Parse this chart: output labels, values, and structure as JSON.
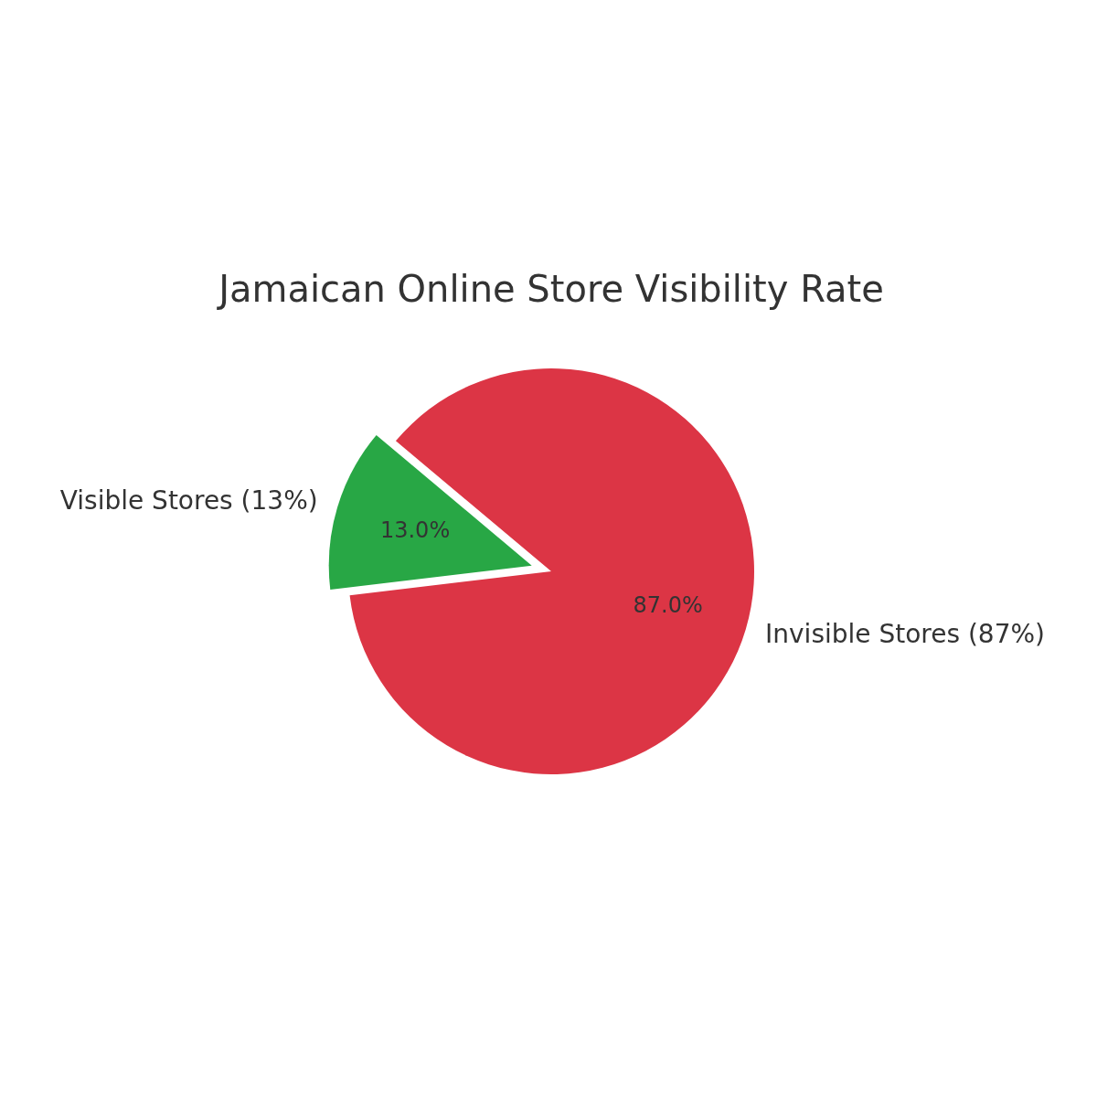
{
  "chart_data": {
    "type": "pie",
    "title": "Jamaican Online Store Visibility Rate",
    "categories": [
      "Visible Stores (13%)",
      "Invisible Stores (87%)"
    ],
    "values": [
      13,
      87
    ],
    "colors": [
      "#28a745",
      "#dc3545"
    ],
    "value_labels": [
      "13.0%",
      "87.0%"
    ]
  }
}
